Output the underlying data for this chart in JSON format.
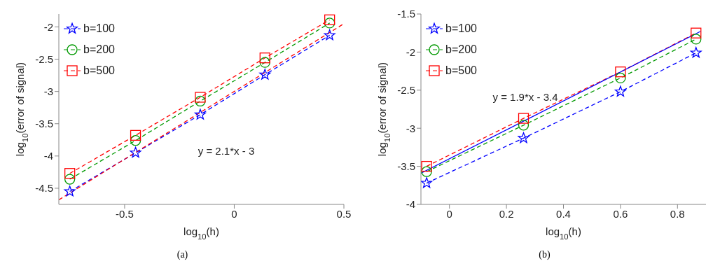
{
  "chart_data": [
    {
      "type": "line",
      "xlabel": "log$_{10}$(h)",
      "ylabel": "log$_{10}$(error of signal)",
      "xlim": [
        -0.8,
        0.5
      ],
      "xticks": [
        -0.5,
        0,
        0.5
      ],
      "ylim": [
        -4.75,
        -1.8
      ],
      "yticks": [
        -4.5,
        -4,
        -3.5,
        -3,
        -2.5,
        -2
      ],
      "grid": false,
      "legend": "top left",
      "line_style": "dashed",
      "x": [
        -0.75,
        -0.45,
        -0.155,
        0.14,
        0.435
      ],
      "series": [
        {
          "name": "b=100",
          "color": "#0000ff",
          "marker": "star",
          "values": [
            -4.55,
            -3.95,
            -3.36,
            -2.74,
            -2.13
          ]
        },
        {
          "name": "b=200",
          "color": "#009900",
          "marker": "circle",
          "values": [
            -4.36,
            -3.76,
            -3.15,
            -2.55,
            -1.94
          ]
        },
        {
          "name": "b=500",
          "color": "#ff0000",
          "marker": "square",
          "values": [
            -4.27,
            -3.68,
            -3.09,
            -2.48,
            -1.89
          ]
        },
        {
          "type": "line",
          "color": "#ff0000",
          "marker": "none",
          "line_style": "dashed",
          "x": [
            -0.8,
            0.5
          ],
          "values": [
            -4.68,
            -1.95
          ]
        }
      ],
      "annotations": [
        "y = 2.1*x - 3",
        "(a)"
      ]
    },
    {
      "type": "line",
      "xlabel": "log$_{10}$(h)",
      "ylabel": "log$_{10}$(error of signal)",
      "xlim": [
        -0.1,
        0.9
      ],
      "xticks": [
        0,
        0.2,
        0.4,
        0.6,
        0.8
      ],
      "ylim": [
        -4,
        -1.5
      ],
      "yticks": [
        -4,
        -3.5,
        -3,
        -2.5,
        -2,
        -1.5
      ],
      "grid": false,
      "legend": "top left",
      "line_style": "dashed",
      "x": [
        -0.08,
        0.26,
        0.6,
        0.865
      ],
      "series": [
        {
          "name": "b=100",
          "color": "#0000ff",
          "marker": "star",
          "values": [
            -3.72,
            -3.13,
            -2.52,
            -2.01
          ]
        },
        {
          "name": "b=200",
          "color": "#009900",
          "marker": "circle",
          "values": [
            -3.57,
            -2.96,
            -2.34,
            -1.83
          ]
        },
        {
          "name": "b=500",
          "color": "#ff0000",
          "marker": "square",
          "values": [
            -3.5,
            -2.87,
            -2.26,
            -1.75
          ]
        },
        {
          "type": "line",
          "color": "#0000ff",
          "marker": "none",
          "line_style": "solid",
          "x": [
            -0.1,
            0.88
          ],
          "values": [
            -3.59,
            -1.73
          ]
        }
      ],
      "annotations": [
        "y = 1.9*x - 3.4",
        "(b)"
      ]
    }
  ]
}
